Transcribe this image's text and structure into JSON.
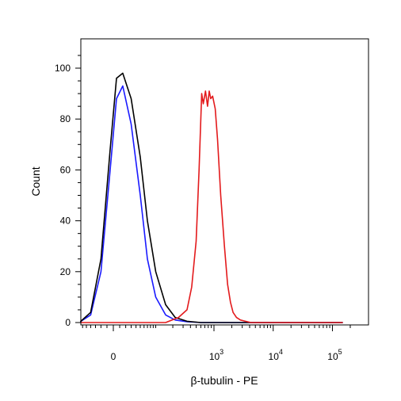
{
  "chart_data": {
    "type": "line",
    "subtype": "flow-cytometry-histogram",
    "xlabel": "β-tubulin - PE",
    "ylabel": "Count",
    "x_scale": "biexponential",
    "xlim": [
      -100,
      200000
    ],
    "ylim": [
      0,
      110
    ],
    "y_ticks": [
      0,
      20,
      40,
      60,
      80,
      100
    ],
    "y_tick_labels": [
      "0",
      "20",
      "40",
      "60",
      "80",
      "100"
    ],
    "x_ticks": [
      0,
      1000,
      10000,
      100000
    ],
    "x_tick_labels": [
      {
        "base": "0",
        "exp": ""
      },
      {
        "base": "10",
        "exp": "3"
      },
      {
        "base": "10",
        "exp": "4"
      },
      {
        "base": "10",
        "exp": "5"
      }
    ],
    "grid": false,
    "legend": "none",
    "series": [
      {
        "color": "#1a1aff",
        "x": [
          -300,
          -80,
          -40,
          -20,
          -5,
          5,
          15,
          30,
          50,
          70,
          100,
          150,
          220,
          350,
          600,
          2000,
          10000,
          150000
        ],
        "y": [
          0,
          0.5,
          3,
          20,
          60,
          88,
          93,
          78,
          50,
          25,
          10,
          3,
          1,
          0.3,
          0,
          0,
          0,
          0
        ]
      },
      {
        "color": "#000000",
        "x": [
          -300,
          -80,
          -40,
          -20,
          -5,
          5,
          15,
          30,
          50,
          70,
          100,
          150,
          220,
          350,
          600,
          2000,
          10000,
          150000
        ],
        "y": [
          0,
          0.5,
          4,
          25,
          68,
          96,
          98,
          88,
          65,
          40,
          20,
          7,
          2,
          0.5,
          0,
          0,
          0,
          0
        ]
      },
      {
        "color": "#e31a1c",
        "x": [
          -300,
          150,
          250,
          350,
          420,
          500,
          560,
          620,
          660,
          720,
          780,
          830,
          880,
          950,
          1050,
          1150,
          1300,
          1500,
          1700,
          1900,
          2100,
          2400,
          2800,
          3400,
          4200,
          6000,
          15000,
          150000
        ],
        "y": [
          0,
          0,
          2,
          5,
          14,
          32,
          60,
          90,
          86,
          91,
          85,
          91,
          88,
          89,
          84,
          72,
          50,
          30,
          15,
          8,
          4,
          2,
          1,
          0.5,
          0,
          0,
          0,
          0
        ]
      }
    ]
  }
}
